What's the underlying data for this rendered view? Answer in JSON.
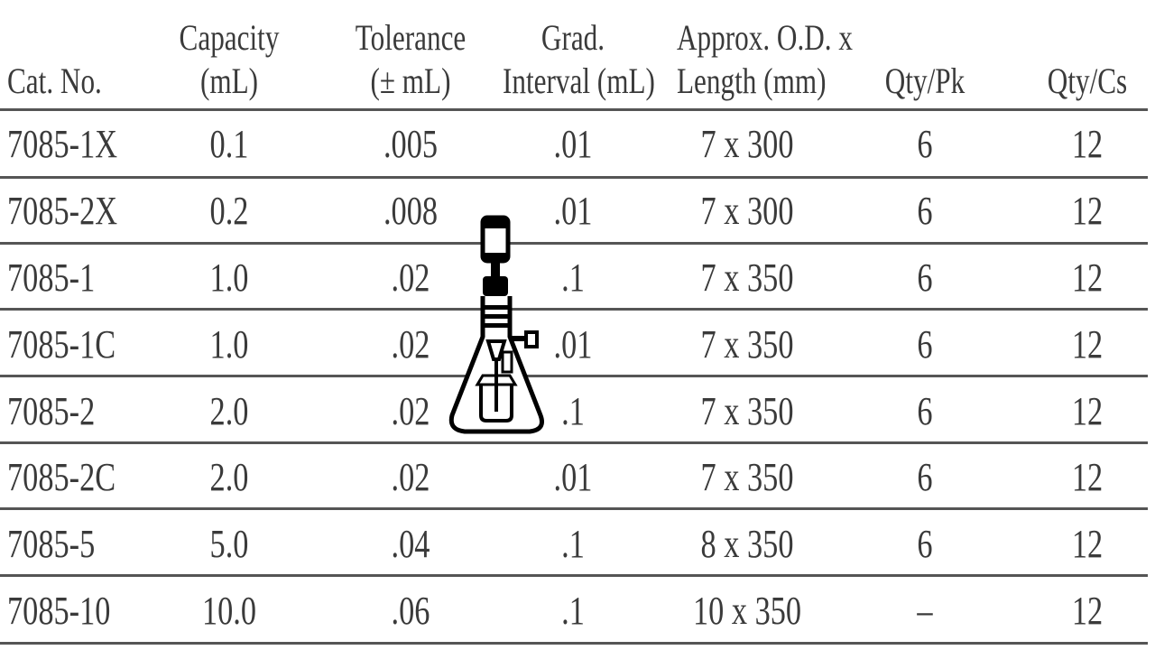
{
  "table": {
    "headers": [
      [
        "",
        "Cat. No."
      ],
      [
        "Capacity",
        "(mL)"
      ],
      [
        "Tolerance",
        "(± mL)"
      ],
      [
        "Grad.",
        "Interval (mL)"
      ],
      [
        "Approx. O.D. x",
        "Length (mm)"
      ],
      [
        "",
        "Qty/Pk"
      ],
      [
        "",
        "Qty/Cs"
      ]
    ],
    "rows": [
      [
        "7085-1X",
        "0.1",
        ".005",
        ".01",
        "7 x 300",
        "6",
        "12"
      ],
      [
        "7085-2X",
        "0.2",
        ".008",
        ".01",
        "7 x 300",
        "6",
        "12"
      ],
      [
        "7085-1",
        "1.0",
        ".02",
        ".1",
        "7 x 350",
        "6",
        "12"
      ],
      [
        "7085-1C",
        "1.0",
        ".02",
        ".01",
        "7 x 350",
        "6",
        "12"
      ],
      [
        "7085-2",
        "2.0",
        ".02",
        ".1",
        "7 x 350",
        "6",
        "12"
      ],
      [
        "7085-2C",
        "2.0",
        ".02",
        ".01",
        "7 x 350",
        "6",
        "12"
      ],
      [
        "7085-5",
        "5.0",
        ".04",
        ".1",
        "8 x 350",
        "6",
        "12"
      ],
      [
        "7085-10",
        "10.0",
        ".06",
        ".1",
        "10 x 350",
        "–",
        "12"
      ]
    ]
  },
  "overlay": {
    "icon": "filter-flask-icon"
  }
}
